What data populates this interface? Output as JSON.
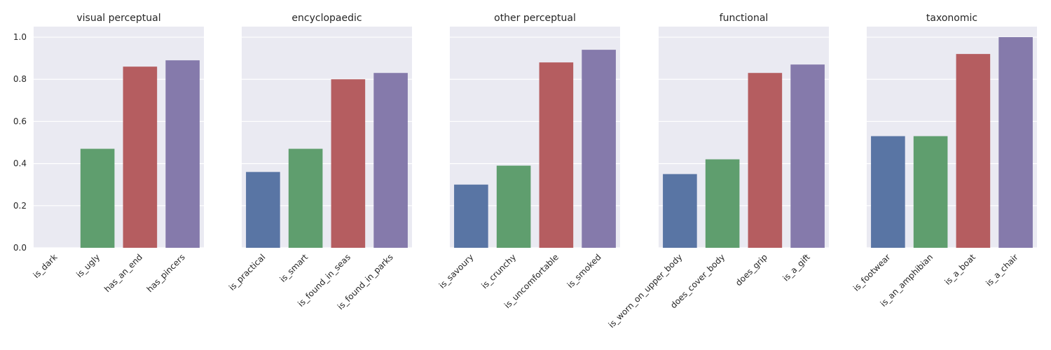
{
  "chart_data": {
    "type": "bar",
    "ylim": [
      0,
      1.05
    ],
    "yticks": [
      "0.0",
      "0.2",
      "0.4",
      "0.6",
      "0.8",
      "1.0"
    ],
    "grid": true,
    "colors": [
      "#5975a4",
      "#5f9e6e",
      "#b55d60",
      "#857aab"
    ],
    "panels": [
      {
        "title": "visual perceptual",
        "categories": [
          "is_dark",
          "is_ugly",
          "has_an_end",
          "has_pincers"
        ],
        "values": [
          0.0,
          0.47,
          0.86,
          0.89
        ]
      },
      {
        "title": "encyclopaedic",
        "categories": [
          "is_practical",
          "is_smart",
          "is_found_in_seas",
          "is_found_in_parks"
        ],
        "values": [
          0.36,
          0.47,
          0.8,
          0.83
        ]
      },
      {
        "title": "other perceptual",
        "categories": [
          "is_savoury",
          "is_crunchy",
          "is_uncomfortable",
          "is_smoked"
        ],
        "values": [
          0.3,
          0.39,
          0.88,
          0.94
        ]
      },
      {
        "title": "functional",
        "categories": [
          "is_worn_on_upper_body",
          "does_cover_body",
          "does_grip",
          "is_a_gift"
        ],
        "values": [
          0.35,
          0.42,
          0.83,
          0.87
        ]
      },
      {
        "title": "taxonomic",
        "categories": [
          "is_footwear",
          "is_an_amphibian",
          "is_a_boat",
          "is_a_chair"
        ],
        "values": [
          0.53,
          0.53,
          0.92,
          1.0
        ]
      }
    ]
  }
}
